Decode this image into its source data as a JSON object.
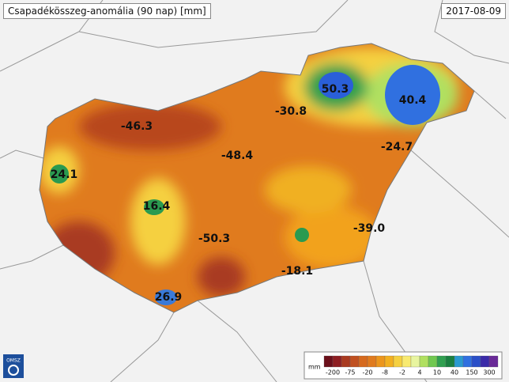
{
  "header": {
    "title": "Csapadékösszeg-anomália (90 nap) [mm]",
    "date": "2017-08-09"
  },
  "map": {
    "labels": [
      "-46.3",
      "24.1",
      "16.4",
      "-48.4",
      "-50.3",
      "26.9",
      "50.3",
      "-30.8",
      "40.4",
      "-24.7",
      "-39.0",
      "-18.1"
    ]
  },
  "legend": {
    "unit": "mm",
    "ticks": [
      "-200",
      "-75",
      "-20",
      "-8",
      "-2",
      "4",
      "10",
      "40",
      "150",
      "300"
    ]
  },
  "logo": "OMSZ"
}
